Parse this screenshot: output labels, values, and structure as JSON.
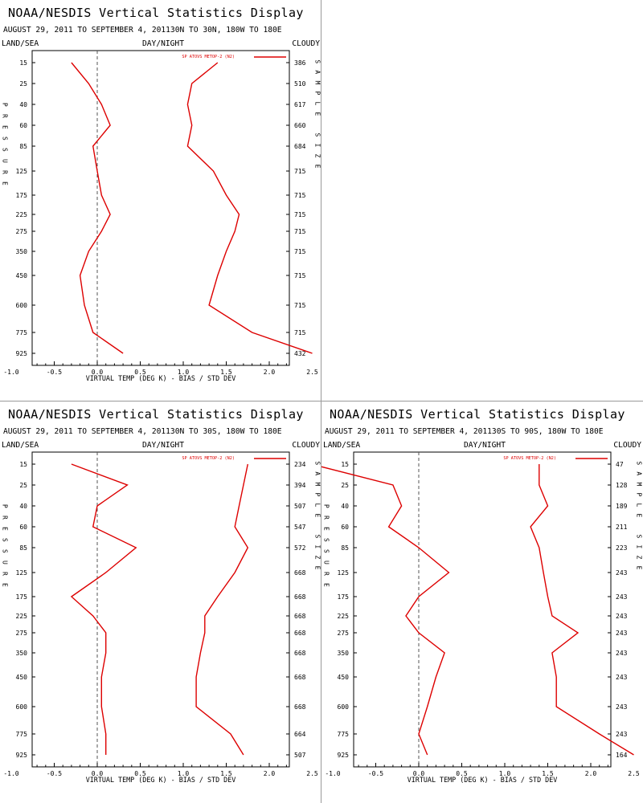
{
  "chart_data": [
    {
      "type": "line",
      "title": "NOAA/NESDIS Vertical Statistics Display",
      "subtitle": "AUGUST 29, 2011 TO SEPTEMBER 4, 201130N TO 30N, 180W TO 180E",
      "left_header": "LAND/SEA",
      "center_header": "DAY/NIGHT",
      "right_header": "CLOUDY",
      "xlabel": "VIRTUAL TEMP (DEG K) - BIAS / STD DEV",
      "ylabel": "PRESSURE",
      "right_axis_label": "SAMPLE SIZE",
      "legend": "SP ATOVS METOP-2 (N2)",
      "xlim": [
        -1.5,
        4.5
      ],
      "x_ticks": [
        "-1.0",
        "-0.5",
        "0.0",
        "0.5",
        "1.0",
        "1.5",
        "2.0",
        "2.5",
        "3.0",
        "3.5",
        "4.0"
      ],
      "pressure_levels": [
        "15",
        "25",
        "40",
        "60",
        "85",
        "125",
        "175",
        "225",
        "275",
        "350",
        "450",
        "600",
        "775",
        "925"
      ],
      "sample_sizes": [
        "386",
        "510",
        "617",
        "660",
        "684",
        "715",
        "715",
        "715",
        "715",
        "715",
        "715",
        "715",
        "715",
        "432"
      ],
      "color": "#dd0000",
      "series": [
        {
          "values": [
            -0.3,
            -0.1,
            0.05,
            0.15,
            -0.05,
            0.0,
            0.05,
            0.15,
            0.05,
            -0.1,
            -0.2,
            -0.15,
            -0.05,
            0.3
          ]
        },
        {
          "values": [
            1.4,
            1.1,
            1.05,
            1.1,
            1.05,
            1.35,
            1.5,
            1.65,
            1.6,
            1.5,
            1.4,
            1.3,
            1.8,
            2.5
          ]
        }
      ]
    },
    {
      "type": "line",
      "title": "NOAA/NESDIS Vertical Statistics Display",
      "subtitle": "AUGUST 29, 2011 TO SEPTEMBER 4, 201130N TO 30S, 180W TO 180E",
      "left_header": "LAND/SEA",
      "center_header": "DAY/NIGHT",
      "right_header": "CLOUDY",
      "xlabel": "VIRTUAL TEMP (DEG K) - BIAS / STD DEV",
      "ylabel": "PRESSURE",
      "right_axis_label": "SAMPLE SIZE",
      "legend": "SP ATOVS METOP-2 (N2)",
      "xlim": [
        -1.5,
        4.5
      ],
      "x_ticks": [
        "-1.0",
        "-0.5",
        "0.0",
        "0.5",
        "1.0",
        "1.5",
        "2.0",
        "2.5",
        "3.0",
        "3.5",
        "4.0"
      ],
      "pressure_levels": [
        "15",
        "25",
        "40",
        "60",
        "85",
        "125",
        "175",
        "225",
        "275",
        "350",
        "450",
        "600",
        "775",
        "925"
      ],
      "sample_sizes": [
        "234",
        "394",
        "507",
        "547",
        "572",
        "668",
        "668",
        "668",
        "668",
        "668",
        "668",
        "668",
        "664",
        "507"
      ],
      "color": "#dd0000",
      "series": [
        {
          "values": [
            -0.3,
            0.35,
            0.0,
            -0.05,
            0.45,
            0.1,
            -0.3,
            -0.05,
            0.1,
            0.1,
            0.05,
            0.05,
            0.1,
            0.1
          ]
        },
        {
          "values": [
            1.75,
            1.7,
            1.65,
            1.6,
            1.75,
            1.6,
            1.4,
            1.25,
            1.25,
            1.2,
            1.15,
            1.15,
            1.55,
            1.7
          ]
        }
      ]
    },
    {
      "type": "line",
      "title": "NOAA/NESDIS Vertical Statistics Display",
      "subtitle": "AUGUST 29, 2011 TO SEPTEMBER 4, 201130S TO 90S, 180W TO 180E",
      "left_header": "LAND/SEA",
      "center_header": "DAY/NIGHT",
      "right_header": "CLOUDY",
      "xlabel": "VIRTUAL TEMP (DEG K) - BIAS / STD DEV",
      "ylabel": "PRESSURE",
      "right_axis_label": "SAMPLE SIZE",
      "legend": "SP ATOVS METOP-2 (N2)",
      "xlim": [
        -1.5,
        4.5
      ],
      "x_ticks": [
        "-1.0",
        "-0.5",
        "0.0",
        "0.5",
        "1.0",
        "1.5",
        "2.0",
        "2.5",
        "3.0",
        "3.5",
        "4.0"
      ],
      "pressure_levels": [
        "15",
        "25",
        "40",
        "60",
        "85",
        "125",
        "175",
        "225",
        "275",
        "350",
        "450",
        "600",
        "775",
        "925"
      ],
      "sample_sizes": [
        "47",
        "128",
        "189",
        "211",
        "223",
        "243",
        "243",
        "243",
        "243",
        "243",
        "243",
        "243",
        "243",
        "164"
      ],
      "color": "#dd0000",
      "series": [
        {
          "values": [
            -1.25,
            -0.3,
            -0.2,
            -0.35,
            0.0,
            0.35,
            0.0,
            -0.15,
            0.0,
            0.3,
            0.2,
            0.1,
            0.0,
            0.1
          ]
        },
        {
          "values": [
            1.4,
            1.4,
            1.5,
            1.3,
            1.4,
            1.45,
            1.5,
            1.55,
            1.85,
            1.55,
            1.6,
            1.6,
            2.1,
            2.5
          ]
        }
      ]
    }
  ]
}
